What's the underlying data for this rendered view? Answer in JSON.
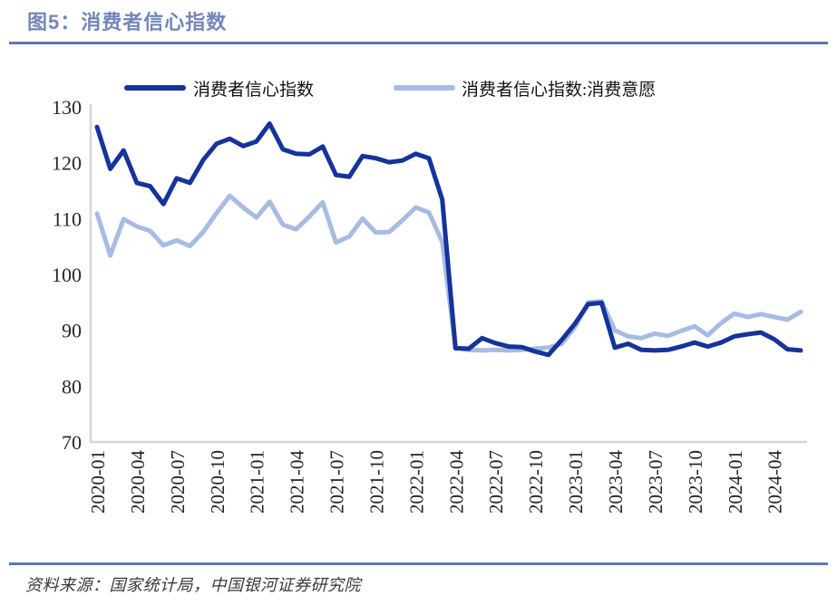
{
  "title": "图5：消费者信心指数",
  "source": "资料来源：国家统计局，中国银河证券研究院",
  "colors": {
    "title": "#7286B8",
    "divider": "#5B79B2",
    "axis_line": "#D6D6D6",
    "tick_text": "#262626",
    "legend_text": "#111111",
    "series_primary": "#15339B",
    "series_secondary": "#A7BBE3"
  },
  "chart_data": {
    "type": "line",
    "title": "",
    "xlabel": "",
    "ylabel": "",
    "grid": false,
    "legend_position": "top",
    "ylim": [
      70,
      130
    ],
    "y_ticks": [
      70,
      80,
      90,
      100,
      110,
      120,
      130
    ],
    "x_tick_step": 3,
    "x": [
      "2020-01",
      "2020-02",
      "2020-03",
      "2020-04",
      "2020-05",
      "2020-06",
      "2020-07",
      "2020-08",
      "2020-09",
      "2020-10",
      "2020-11",
      "2020-12",
      "2021-01",
      "2021-02",
      "2021-03",
      "2021-04",
      "2021-05",
      "2021-06",
      "2021-07",
      "2021-08",
      "2021-09",
      "2021-10",
      "2021-11",
      "2021-12",
      "2022-01",
      "2022-02",
      "2022-03",
      "2022-04",
      "2022-05",
      "2022-06",
      "2022-07",
      "2022-08",
      "2022-09",
      "2022-10",
      "2022-11",
      "2022-12",
      "2023-01",
      "2023-02",
      "2023-03",
      "2023-04",
      "2023-05",
      "2023-06",
      "2023-07",
      "2023-08",
      "2023-09",
      "2023-10",
      "2023-11",
      "2023-12",
      "2024-01",
      "2024-02",
      "2024-03",
      "2024-04",
      "2024-05",
      "2024-06"
    ],
    "series": [
      {
        "name": "消费者信心指数",
        "color": "#15339B",
        "values": [
          126.4,
          118.9,
          122.2,
          116.4,
          115.8,
          112.6,
          117.2,
          116.4,
          120.5,
          123.4,
          124.3,
          123.0,
          123.8,
          127.0,
          122.4,
          121.6,
          121.5,
          122.9,
          117.8,
          117.5,
          121.2,
          120.8,
          120.1,
          120.4,
          121.6,
          120.8,
          113.4,
          86.8,
          86.7,
          88.6,
          87.7,
          87.1,
          87.0,
          86.2,
          85.6,
          88.3,
          91.2,
          94.7,
          94.9,
          86.9,
          87.6,
          86.5,
          86.4,
          86.5,
          87.1,
          87.8,
          87.1,
          87.8,
          88.9,
          89.3,
          89.6,
          88.4,
          86.6,
          86.4
        ]
      },
      {
        "name": "消费者信心指数:消费意愿",
        "color": "#A7BBE3",
        "values": [
          110.9,
          103.4,
          109.9,
          108.6,
          107.8,
          105.2,
          106.1,
          105.1,
          107.6,
          111.0,
          114.1,
          112.0,
          110.2,
          113.0,
          108.9,
          108.1,
          110.4,
          112.9,
          105.7,
          106.8,
          110.0,
          107.5,
          107.6,
          109.7,
          112.0,
          111.1,
          105.8,
          86.8,
          86.5,
          86.4,
          86.5,
          86.4,
          86.5,
          86.7,
          86.9,
          87.6,
          90.6,
          95.0,
          95.2,
          90.0,
          88.9,
          88.6,
          89.4,
          89.0,
          89.9,
          90.7,
          89.1,
          91.3,
          93.0,
          92.4,
          92.9,
          92.4,
          91.9,
          93.3
        ]
      }
    ]
  }
}
